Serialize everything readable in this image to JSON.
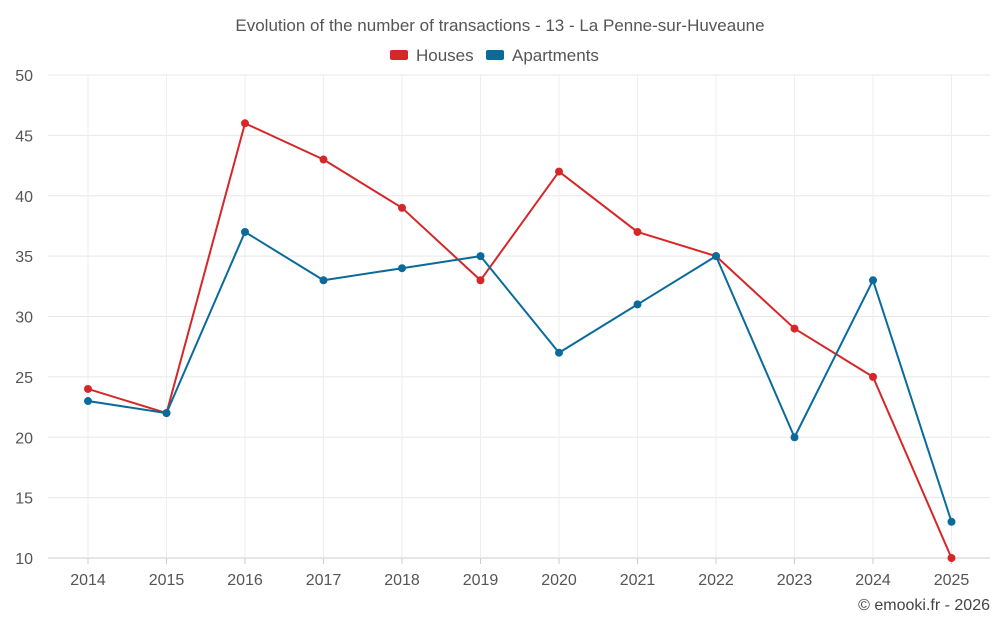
{
  "chart_data": {
    "type": "line",
    "title": "Evolution of the number of transactions - 13 - La Penne-sur-Huveaune",
    "xlabel": "",
    "ylabel": "",
    "categories": [
      "2014",
      "2015",
      "2016",
      "2017",
      "2018",
      "2019",
      "2020",
      "2021",
      "2022",
      "2023",
      "2024",
      "2025"
    ],
    "ylim": [
      10,
      50
    ],
    "yticks": [
      10,
      15,
      20,
      25,
      30,
      35,
      40,
      45,
      50
    ],
    "grid": true,
    "legend_position": "top-center",
    "series": [
      {
        "name": "Houses",
        "color": "#d62728",
        "values": [
          24,
          22,
          46,
          43,
          39,
          33,
          42,
          37,
          35,
          29,
          25,
          10
        ]
      },
      {
        "name": "Apartments",
        "color": "#0a6b9a",
        "values": [
          23,
          22,
          37,
          33,
          34,
          35,
          27,
          31,
          35,
          20,
          33,
          13
        ]
      }
    ],
    "credit": "© emooki.fr - 2026"
  }
}
